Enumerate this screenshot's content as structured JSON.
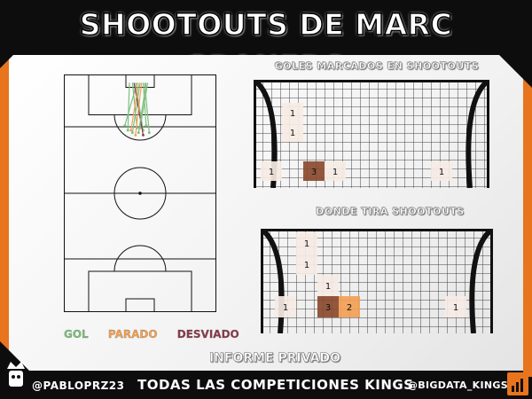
{
  "title": "SHOOTOUTS DE MARC GRANERO",
  "goals_scored_title": "GOLES MARCADOS EN SHOOTOUTS",
  "shot_placement_title": "DONDE TIRA SHOOTOUTS",
  "legend": {
    "gol": {
      "label": "GOL",
      "color": "#7fbf7f"
    },
    "parado": {
      "label": "PARADO",
      "color": "#f2a055"
    },
    "desviado": {
      "label": "DESVIADO",
      "color": "#8b3a4a"
    }
  },
  "subtitle": "INFORME PRIVADO",
  "footer": {
    "handle_left": "@PABLOPRZ23",
    "center": "TODAS LAS COMPETICIONES KINGS",
    "handle_right": "@BIGDATA_KINGS"
  },
  "colors": {
    "accent": "#e8741e",
    "background": "#0d0d0d",
    "cell_light": "#f6ece4",
    "cell_mid": "#f2a055",
    "cell_dark": "#8a4a2e"
  },
  "chart_data": [
    {
      "type": "heatmap",
      "title": "GOLES MARCADOS EN SHOOTOUTS",
      "cells": [
        {
          "col": 1,
          "row": 1,
          "value": 1
        },
        {
          "col": 1,
          "row": 2,
          "value": 1
        },
        {
          "col": 0,
          "row": 4,
          "value": 1
        },
        {
          "col": 2,
          "row": 4,
          "value": 3
        },
        {
          "col": 3,
          "row": 4,
          "value": 1
        },
        {
          "col": 8,
          "row": 4,
          "value": 1
        }
      ]
    },
    {
      "type": "heatmap",
      "title": "DONDE TIRA SHOOTOUTS",
      "cells": [
        {
          "col": 1,
          "row": 0,
          "value": 1
        },
        {
          "col": 1,
          "row": 1,
          "value": 1
        },
        {
          "col": 2,
          "row": 2,
          "value": 1
        },
        {
          "col": 0,
          "row": 3,
          "value": 1
        },
        {
          "col": 2,
          "row": 3,
          "value": 3
        },
        {
          "col": 3,
          "row": 3,
          "value": 2
        },
        {
          "col": 8,
          "row": 3,
          "value": 1
        }
      ]
    },
    {
      "type": "scatter",
      "title": "",
      "shots": [
        {
          "x0": 0.45,
          "y0": 0.02,
          "x1": 0.48,
          "y1": 0.21,
          "result": "gol"
        },
        {
          "x0": 0.47,
          "y0": 0.02,
          "x1": 0.52,
          "y1": 0.22,
          "result": "gol"
        },
        {
          "x0": 0.5,
          "y0": 0.02,
          "x1": 0.45,
          "y1": 0.23,
          "result": "gol"
        },
        {
          "x0": 0.52,
          "y0": 0.02,
          "x1": 0.54,
          "y1": 0.2,
          "result": "gol"
        },
        {
          "x0": 0.55,
          "y0": 0.02,
          "x1": 0.5,
          "y1": 0.21,
          "result": "gol"
        },
        {
          "x0": 0.43,
          "y0": 0.02,
          "x1": 0.42,
          "y1": 0.22,
          "result": "gol"
        },
        {
          "x0": 0.48,
          "y0": 0.02,
          "x1": 0.4,
          "y1": 0.2,
          "result": "gol"
        },
        {
          "x0": 0.53,
          "y0": 0.02,
          "x1": 0.56,
          "y1": 0.23,
          "result": "gol"
        },
        {
          "x0": 0.46,
          "y0": 0.02,
          "x1": 0.52,
          "y1": 0.24,
          "result": "desviado"
        },
        {
          "x0": 0.51,
          "y0": 0.02,
          "x1": 0.47,
          "y1": 0.24,
          "result": "parado"
        },
        {
          "x0": 0.49,
          "y0": 0.02,
          "x1": 0.44,
          "y1": 0.22,
          "result": "parado"
        },
        {
          "x0": 0.54,
          "y0": 0.02,
          "x1": 0.49,
          "y1": 0.23,
          "result": "gol"
        }
      ]
    }
  ]
}
